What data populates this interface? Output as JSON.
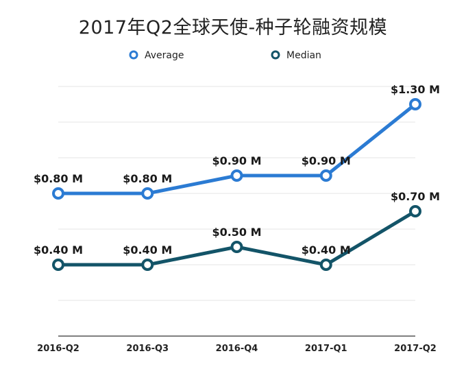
{
  "chart_data": {
    "type": "line",
    "title": "2017年Q2全球天使-种子轮融资规模",
    "categories": [
      "2016-Q2",
      "2016-Q3",
      "2016-Q4",
      "2017-Q1",
      "2017-Q2"
    ],
    "series": [
      {
        "name": "Average",
        "values": [
          0.8,
          0.8,
          0.9,
          0.9,
          1.3
        ],
        "labels": [
          "$0.80 M",
          "$0.80 M",
          "$0.90 M",
          "$0.90 M",
          "$1.30 M"
        ],
        "color": "#2b7bd3"
      },
      {
        "name": "Median",
        "values": [
          0.4,
          0.4,
          0.5,
          0.4,
          0.7
        ],
        "labels": [
          "$0.40 M",
          "$0.40 M",
          "$0.50 M",
          "$0.40 M",
          "$0.70 M"
        ],
        "color": "#135468"
      }
    ],
    "ylim": [
      0,
      1.4
    ],
    "grid": true,
    "legend": "top-center"
  }
}
